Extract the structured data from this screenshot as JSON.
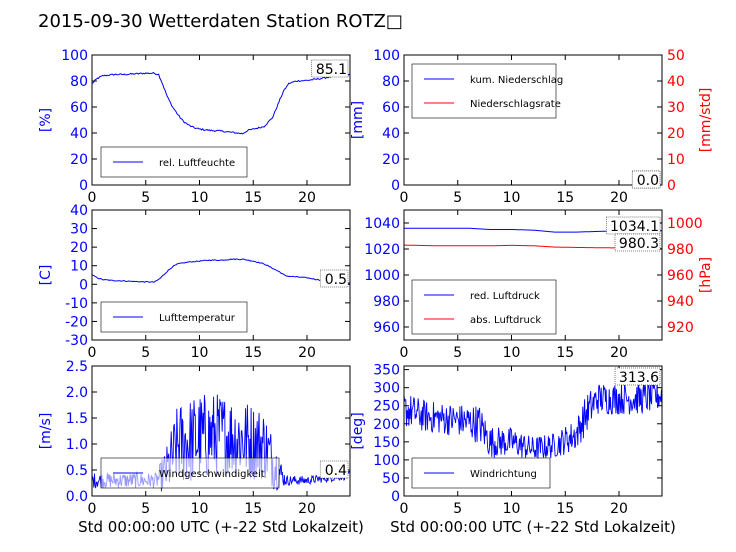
{
  "title": "2015-09-30 Wetterdaten Station ROTZ□",
  "x_axis_label": "Std 00:00:00 UTC (+-22 Std Lokalzeit)",
  "colors": {
    "primary": "#0000ff",
    "secondary": "#ff0000",
    "axis_text_secondary": "#ff0000"
  },
  "chart_data": [
    {
      "id": "humidity",
      "type": "line",
      "ylabel": "[%]",
      "xlim": [
        0,
        24
      ],
      "ylim": [
        0,
        100
      ],
      "xticks": [
        0,
        5,
        10,
        15,
        20
      ],
      "yticks": [
        0,
        20,
        40,
        60,
        80,
        100
      ],
      "annotation": "85.1",
      "legend_position": "bottom-left",
      "series": [
        {
          "name": "rel. Luftfeuchte",
          "color": "#0000ff",
          "x": [
            0,
            0.5,
            1,
            2,
            3,
            4,
            5,
            5.8,
            6.2,
            6.6,
            7,
            7.5,
            8,
            8.5,
            9,
            9.5,
            10,
            11,
            12,
            13,
            14,
            14.5,
            15,
            16,
            16.8,
            17.3,
            17.8,
            18.3,
            19,
            20,
            21,
            22,
            23,
            24
          ],
          "y": [
            78,
            82,
            84,
            85,
            85,
            85.5,
            86,
            86,
            85,
            77,
            68,
            60,
            54,
            49,
            46,
            44,
            43,
            42,
            41.5,
            40.5,
            39.5,
            42,
            43,
            45,
            52,
            62,
            72,
            78,
            80,
            80.5,
            81.5,
            83,
            84,
            85.1
          ]
        }
      ]
    },
    {
      "id": "precip",
      "type": "line",
      "ylabel": "[mm]",
      "ylabel_right": "[mm/std]",
      "xlim": [
        0,
        24
      ],
      "ylim": [
        0,
        100
      ],
      "ylim_right": [
        0,
        50
      ],
      "xticks": [
        0,
        5,
        10,
        15,
        20
      ],
      "yticks": [
        0,
        20,
        40,
        60,
        80,
        100
      ],
      "yticks_right": [
        0,
        10,
        20,
        30,
        40,
        50
      ],
      "annotation": "0.0",
      "annotation2": "0.0",
      "legend_position": "top-left",
      "series": [
        {
          "name": "kum. Niederschlag",
          "color": "#0000ff",
          "axis": "left",
          "x": [
            0,
            24
          ],
          "y": [
            0,
            0
          ]
        },
        {
          "name": "Niederschlagsrate",
          "color": "#ff0000",
          "axis": "right",
          "x": [
            0,
            24
          ],
          "y": [
            0,
            0
          ]
        }
      ]
    },
    {
      "id": "temperature",
      "type": "line",
      "ylabel": "[C]",
      "xlim": [
        0,
        24
      ],
      "ylim": [
        -30,
        40
      ],
      "xticks": [
        0,
        5,
        10,
        15,
        20
      ],
      "yticks": [
        -30,
        -20,
        -10,
        0,
        10,
        20,
        30,
        40
      ],
      "annotation": "0.5",
      "legend_position": "bottom-left",
      "series": [
        {
          "name": "Lufttemperatur",
          "color": "#0000ff",
          "x": [
            0,
            0.5,
            1,
            2,
            3,
            4,
            5,
            5.8,
            6.3,
            7,
            7.5,
            8,
            9,
            10,
            11,
            12,
            13,
            14,
            15,
            16,
            16.5,
            17,
            17.5,
            18,
            19,
            20,
            21,
            22,
            23,
            24
          ],
          "y": [
            5,
            3.5,
            2.5,
            2,
            1.8,
            1.5,
            1.3,
            1.2,
            3,
            7,
            9.5,
            11,
            12,
            12.5,
            13,
            13,
            13.5,
            13.5,
            12.5,
            11,
            9.5,
            8,
            6.5,
            4.5,
            4,
            3.5,
            2.5,
            1.5,
            1,
            0.5
          ]
        }
      ]
    },
    {
      "id": "pressure",
      "type": "line",
      "ylabel_right": "[hPa]",
      "xlim": [
        0,
        24
      ],
      "ylim": [
        950,
        1050
      ],
      "ylim_right": [
        910,
        1010
      ],
      "xticks": [
        0,
        5,
        10,
        15,
        20
      ],
      "yticks": [
        960,
        980,
        1000,
        1020,
        1040
      ],
      "yticks_right": [
        920,
        940,
        960,
        980,
        1000
      ],
      "annotation": "1034.1",
      "annotation2": "980.3",
      "legend_position": "bottom-left",
      "series": [
        {
          "name": "red. Luftdruck",
          "color": "#0000ff",
          "axis": "left",
          "x": [
            0,
            3,
            6,
            8,
            10,
            12,
            14,
            16,
            18,
            20,
            22,
            24
          ],
          "y": [
            1036,
            1036,
            1036,
            1035,
            1035,
            1034.5,
            1033,
            1033,
            1033.5,
            1034,
            1034.2,
            1034.1
          ]
        },
        {
          "name": "abs. Luftdruck",
          "color": "#ff0000",
          "axis": "right",
          "x": [
            0,
            3,
            6,
            8,
            10,
            12,
            14,
            16,
            18,
            20,
            22,
            24
          ],
          "y": [
            983,
            982.5,
            982.5,
            982.5,
            982.8,
            982.5,
            981.5,
            981.2,
            981,
            980.8,
            980.5,
            980.3
          ]
        }
      ]
    },
    {
      "id": "windspeed",
      "type": "line",
      "ylabel": "[m/s]",
      "xlim": [
        0,
        24
      ],
      "ylim": [
        0,
        2.5
      ],
      "xticks": [
        0,
        5,
        10,
        15,
        20
      ],
      "yticks": [
        0.0,
        0.5,
        1.0,
        1.5,
        2.0,
        2.5
      ],
      "annotation": "0.4",
      "legend_position": "bottom-left",
      "series": [
        {
          "name": "Windgeschwindigkeit",
          "color": "#0000ff",
          "envelope": {
            "x": [
              0,
              6,
              7,
              8,
              10,
              12,
              14,
              16,
              17,
              18,
              20,
              22,
              24
            ],
            "y": [
              0.3,
              0.3,
              0.5,
              1.0,
              1.1,
              1.2,
              1.1,
              1.0,
              0.6,
              0.3,
              0.3,
              0.35,
              0.4
            ],
            "amplitude": [
              0.15,
              0.15,
              0.5,
              0.8,
              0.9,
              0.8,
              0.8,
              0.7,
              0.5,
              0.1,
              0.08,
              0.08,
              0.08
            ]
          }
        }
      ]
    },
    {
      "id": "winddir",
      "type": "line",
      "ylabel": "[deg]",
      "xlim": [
        0,
        24
      ],
      "ylim": [
        0,
        360
      ],
      "xticks": [
        0,
        5,
        10,
        15,
        20
      ],
      "yticks": [
        0,
        50,
        100,
        150,
        200,
        250,
        300,
        350
      ],
      "annotation": "313.6",
      "legend_position": "bottom-left",
      "series": [
        {
          "name": "Windrichtung",
          "color": "#0000ff",
          "envelope": {
            "x": [
              0,
              2,
              5,
              7,
              8,
              10,
              12,
              14,
              16,
              17,
              18,
              20,
              22,
              24
            ],
            "y": [
              240,
              220,
              210,
              200,
              150,
              150,
              130,
              140,
              170,
              230,
              270,
              270,
              270,
              280
            ],
            "amplitude": [
              50,
              45,
              45,
              55,
              45,
              40,
              35,
              35,
              45,
              55,
              45,
              45,
              45,
              45
            ]
          }
        }
      ]
    }
  ]
}
